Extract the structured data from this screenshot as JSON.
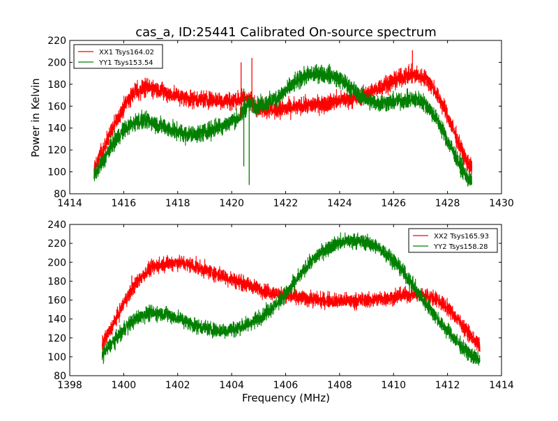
{
  "page": {
    "title": "cas_a, ID:25441 Calibrated On-source spectrum"
  },
  "colors": {
    "red": "#ff0000",
    "green": "#007f00",
    "axes": "#000000",
    "background": "#ffffff"
  },
  "chart_data": [
    {
      "type": "line",
      "title": "cas_a, ID:25441 Calibrated On-source spectrum",
      "xlabel": "",
      "ylabel": "Power in Kelvin",
      "xlim": [
        1414,
        1430
      ],
      "ylim": [
        80,
        220
      ],
      "xticks": [
        1414,
        1416,
        1418,
        1420,
        1422,
        1424,
        1426,
        1428,
        1430
      ],
      "yticks": [
        80,
        100,
        120,
        140,
        160,
        180,
        200,
        220
      ],
      "grid": false,
      "legend": "top-left",
      "series": [
        {
          "name": "XX1 Tsys164.02",
          "color": "#ff0000",
          "x": [
            1414.9,
            1415.2,
            1415.5,
            1415.8,
            1416.1,
            1416.4,
            1416.7,
            1417.0,
            1417.3,
            1417.6,
            1417.9,
            1418.2,
            1418.5,
            1418.8,
            1419.1,
            1419.4,
            1419.7,
            1420.0,
            1420.3,
            1420.6,
            1420.9,
            1421.2,
            1421.5,
            1421.8,
            1422.1,
            1422.4,
            1422.7,
            1423.0,
            1423.3,
            1423.6,
            1423.9,
            1424.2,
            1424.5,
            1424.8,
            1425.1,
            1425.4,
            1425.7,
            1426.0,
            1426.3,
            1426.6,
            1426.9,
            1427.2,
            1427.5,
            1427.8,
            1428.1,
            1428.4,
            1428.7,
            1428.9
          ],
          "y": [
            103,
            118,
            134,
            150,
            163,
            172,
            176,
            177,
            175,
            172,
            170,
            168,
            167,
            166,
            166,
            166,
            165,
            165,
            166,
            168,
            160,
            158,
            157,
            157,
            158,
            159,
            160,
            161,
            162,
            163,
            165,
            166,
            167,
            169,
            172,
            176,
            180,
            183,
            186,
            188,
            188,
            185,
            176,
            162,
            145,
            127,
            110,
            103
          ],
          "noise": 4
        },
        {
          "name": "YY1 Tsys153.54",
          "color": "#007f00",
          "x": [
            1414.9,
            1415.2,
            1415.5,
            1415.8,
            1416.1,
            1416.4,
            1416.7,
            1417.0,
            1417.3,
            1417.6,
            1417.9,
            1418.2,
            1418.5,
            1418.8,
            1419.1,
            1419.4,
            1419.7,
            1420.0,
            1420.3,
            1420.6,
            1420.9,
            1421.2,
            1421.5,
            1421.8,
            1422.1,
            1422.4,
            1422.7,
            1423.0,
            1423.3,
            1423.6,
            1423.9,
            1424.2,
            1424.5,
            1424.8,
            1425.1,
            1425.4,
            1425.7,
            1426.0,
            1426.3,
            1426.6,
            1426.9,
            1427.2,
            1427.5,
            1427.8,
            1428.1,
            1428.4,
            1428.7,
            1428.9
          ],
          "y": [
            96,
            108,
            122,
            133,
            140,
            145,
            147,
            146,
            143,
            140,
            137,
            135,
            134,
            135,
            137,
            140,
            143,
            146,
            150,
            162,
            160,
            162,
            165,
            170,
            176,
            182,
            187,
            189,
            190,
            189,
            186,
            181,
            175,
            169,
            165,
            163,
            163,
            164,
            165,
            166,
            166,
            162,
            152,
            139,
            124,
            109,
            96,
            90
          ],
          "noise": 4
        }
      ]
    },
    {
      "type": "line",
      "title": "",
      "xlabel": "Frequency (MHz)",
      "ylabel": "",
      "xlim": [
        1398,
        1414
      ],
      "ylim": [
        80,
        240
      ],
      "xticks": [
        1398,
        1400,
        1402,
        1404,
        1406,
        1408,
        1410,
        1412,
        1414
      ],
      "yticks": [
        80,
        100,
        120,
        140,
        160,
        180,
        200,
        220,
        240
      ],
      "grid": false,
      "legend": "top-right",
      "series": [
        {
          "name": "XX2 Tsys165.93",
          "color": "#ff0000",
          "x": [
            1399.2,
            1399.5,
            1399.8,
            1400.1,
            1400.4,
            1400.7,
            1401.0,
            1401.3,
            1401.6,
            1401.9,
            1402.2,
            1402.5,
            1402.8,
            1403.1,
            1403.4,
            1403.7,
            1404.0,
            1404.3,
            1404.6,
            1404.9,
            1405.2,
            1405.5,
            1405.8,
            1406.1,
            1406.4,
            1406.7,
            1407.0,
            1407.3,
            1407.6,
            1407.9,
            1408.2,
            1408.5,
            1408.8,
            1409.1,
            1409.4,
            1409.7,
            1410.0,
            1410.3,
            1410.6,
            1410.9,
            1411.2,
            1411.5,
            1411.8,
            1412.1,
            1412.4,
            1412.7,
            1413.0,
            1413.2
          ],
          "y": [
            113,
            128,
            145,
            162,
            175,
            186,
            193,
            197,
            199,
            200,
            199,
            197,
            194,
            191,
            188,
            185,
            182,
            179,
            176,
            173,
            170,
            168,
            166,
            164,
            163,
            162,
            161,
            160,
            160,
            159,
            159,
            159,
            160,
            160,
            161,
            162,
            163,
            165,
            166,
            166,
            165,
            162,
            157,
            149,
            139,
            128,
            117,
            111
          ],
          "noise": 4
        },
        {
          "name": "YY2 Tsys158.28",
          "color": "#007f00",
          "x": [
            1399.2,
            1399.5,
            1399.8,
            1400.1,
            1400.4,
            1400.7,
            1401.0,
            1401.3,
            1401.6,
            1401.9,
            1402.2,
            1402.5,
            1402.8,
            1403.1,
            1403.4,
            1403.7,
            1404.0,
            1404.3,
            1404.6,
            1404.9,
            1405.2,
            1405.5,
            1405.8,
            1406.1,
            1406.4,
            1406.7,
            1407.0,
            1407.3,
            1407.6,
            1407.9,
            1408.2,
            1408.5,
            1408.8,
            1409.1,
            1409.4,
            1409.7,
            1410.0,
            1410.3,
            1410.6,
            1410.9,
            1411.2,
            1411.5,
            1411.8,
            1412.1,
            1412.4,
            1412.7,
            1413.0,
            1413.2
          ],
          "y": [
            102,
            112,
            122,
            132,
            139,
            144,
            146,
            146,
            145,
            142,
            139,
            135,
            132,
            130,
            128,
            128,
            129,
            131,
            134,
            139,
            145,
            152,
            160,
            170,
            181,
            192,
            202,
            210,
            216,
            220,
            222,
            223,
            222,
            220,
            216,
            210,
            202,
            192,
            180,
            168,
            156,
            145,
            134,
            124,
            114,
            106,
            99,
            96
          ],
          "noise": 4
        }
      ]
    }
  ]
}
